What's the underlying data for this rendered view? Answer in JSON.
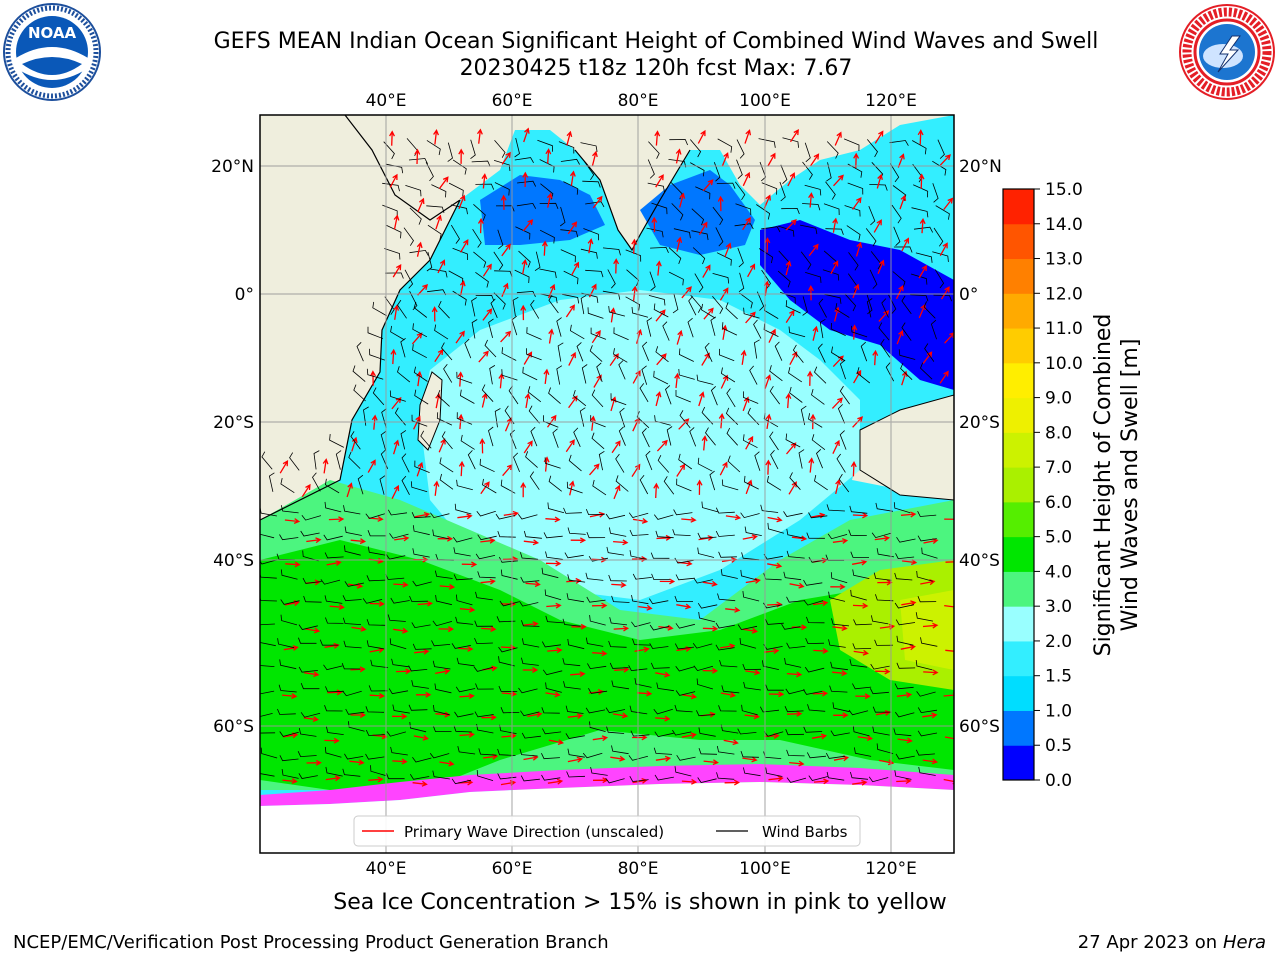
{
  "title_line1": "GEFS MEAN Indian Ocean Significant Height of Combined Wind Waves and Swell",
  "title_line2": "20230425 t18z 120h fcst   Max: 7.67",
  "map": {
    "lon_ticks": [
      "40°E",
      "60°E",
      "80°E",
      "100°E",
      "120°E"
    ],
    "lat_ticks": [
      "20°N",
      "0°",
      "20°S",
      "40°S",
      "60°S"
    ],
    "legend": {
      "wave_label": "Primary Wave Direction (unscaled)",
      "wave_color": "#ff0000",
      "wind_label": "Wind Barbs",
      "wind_color": "#000000"
    },
    "land_color": "#efeedd"
  },
  "colorbar": {
    "label_line1": "Significant Height of Combined",
    "label_line2": "Wind Waves and Swell [m]",
    "ticks": [
      "0.0",
      "0.5",
      "1.0",
      "1.5",
      "2.0",
      "3.0",
      "4.0",
      "5.0",
      "6.0",
      "7.0",
      "8.0",
      "9.0",
      "10.0",
      "11.0",
      "12.0",
      "13.0",
      "14.0",
      "15.0"
    ],
    "colors": [
      "#0000ff",
      "#0077ff",
      "#00ddff",
      "#33eeff",
      "#99ffff",
      "#4cf57f",
      "#00e600",
      "#55ee00",
      "#aaf000",
      "#ccf200",
      "#eef000",
      "#ffee00",
      "#ffcc00",
      "#ffaa00",
      "#ff8000",
      "#ff5500",
      "#ff2200"
    ]
  },
  "note": "Sea Ice Concentration > 15% is shown in pink to yellow",
  "footer_left": "NCEP/EMC/Verification Post Processing Product Generation Branch",
  "footer_date": "27 Apr 2023 on ",
  "footer_host": "Hera"
}
